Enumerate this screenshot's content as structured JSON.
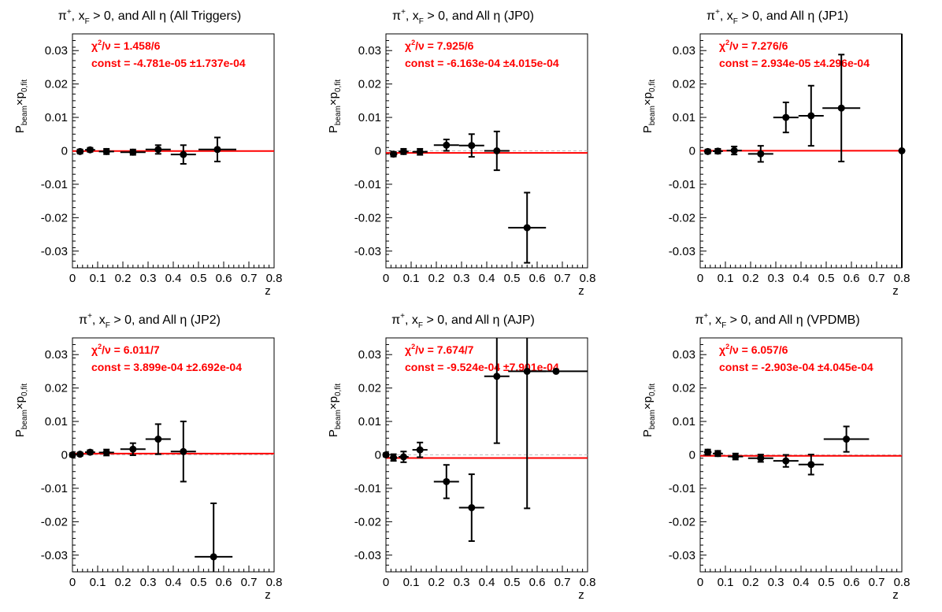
{
  "figure": {
    "colors": {
      "fit": "#ff0000",
      "stats": "#ff0000",
      "points": "#000000",
      "zero_line": "#bbbbbb"
    }
  },
  "chart_data": [
    {
      "type": "scatter",
      "title": "π⁺, x_F > 0, and All  η (All Triggers)",
      "title_parts": {
        "pre": "π",
        "sup": "+",
        "mid": ", x",
        "sub": "F",
        "post": " > 0, and All  η (All Triggers)"
      },
      "xlabel": "z",
      "ylabel": "P_beam×p_0,fit",
      "xlim": [
        0,
        0.8
      ],
      "ylim": [
        -0.035,
        0.035
      ],
      "xticks": [
        "0",
        "0.1",
        "0.2",
        "0.3",
        "0.4",
        "0.5",
        "0.6",
        "0.7",
        "0.8"
      ],
      "yticks": [
        "-0.03",
        "-0.02",
        "-0.01",
        "0",
        "0.01",
        "0.02",
        "0.03"
      ],
      "stats": {
        "chi2": "χ²/ν = 1.458/6",
        "chi2_label": "/ν = 1.458/6",
        "const": "const = -4.781e-05  ±1.737e-04"
      },
      "fit_const": -4.781e-05,
      "points": [
        {
          "x": 0.03,
          "y": -0.0002,
          "xerr": 0.015,
          "yerr": 0.0006
        },
        {
          "x": 0.07,
          "y": 0.0003,
          "xerr": 0.02,
          "yerr": 0.0006
        },
        {
          "x": 0.135,
          "y": -0.0002,
          "xerr": 0.03,
          "yerr": 0.0008
        },
        {
          "x": 0.24,
          "y": -0.0004,
          "xerr": 0.05,
          "yerr": 0.0008
        },
        {
          "x": 0.34,
          "y": 0.0004,
          "xerr": 0.05,
          "yerr": 0.0013
        },
        {
          "x": 0.44,
          "y": -0.0011,
          "xerr": 0.05,
          "yerr": 0.0028
        },
        {
          "x": 0.575,
          "y": 0.0004,
          "xerr": 0.075,
          "yerr": 0.0036
        }
      ]
    },
    {
      "type": "scatter",
      "title": "π⁺, x_F > 0, and All η (JP0)",
      "title_parts": {
        "pre": "π",
        "sup": "+",
        "mid": ", x",
        "sub": "F",
        "post": " > 0, and All η (JP0)"
      },
      "xlabel": "z",
      "ylabel": "P_beam×p_0,fit",
      "xlim": [
        0,
        0.8
      ],
      "ylim": [
        -0.035,
        0.035
      ],
      "xticks": [
        "0",
        "0.1",
        "0.2",
        "0.3",
        "0.4",
        "0.5",
        "0.6",
        "0.7",
        "0.8"
      ],
      "yticks": [
        "-0.03",
        "-0.02",
        "-0.01",
        "0",
        "0.01",
        "0.02",
        "0.03"
      ],
      "stats": {
        "chi2": "χ²/ν = 7.925/6",
        "chi2_label": "/ν = 7.925/6",
        "const": "const = -6.163e-04  ±4.015e-04"
      },
      "fit_const": -0.0006163,
      "points": [
        {
          "x": 0.03,
          "y": -0.001,
          "xerr": 0.015,
          "yerr": 0.0007
        },
        {
          "x": 0.07,
          "y": -0.0002,
          "xerr": 0.02,
          "yerr": 0.0008
        },
        {
          "x": 0.135,
          "y": -0.0003,
          "xerr": 0.03,
          "yerr": 0.0009
        },
        {
          "x": 0.24,
          "y": 0.0017,
          "xerr": 0.05,
          "yerr": 0.0017
        },
        {
          "x": 0.34,
          "y": 0.0016,
          "xerr": 0.05,
          "yerr": 0.0034
        },
        {
          "x": 0.44,
          "y": 0.0,
          "xerr": 0.05,
          "yerr": 0.0058
        },
        {
          "x": 0.56,
          "y": -0.023,
          "xerr": 0.075,
          "yerr": 0.0105
        }
      ]
    },
    {
      "type": "scatter",
      "title": "π⁺, x_F > 0, and All η (JP1)",
      "title_parts": {
        "pre": "π",
        "sup": "+",
        "mid": ", x",
        "sub": "F",
        "post": " > 0, and All η (JP1)"
      },
      "xlabel": "z",
      "ylabel": "P_beam×p_0,fit",
      "xlim": [
        0,
        0.8
      ],
      "ylim": [
        -0.035,
        0.035
      ],
      "xticks": [
        "0",
        "0.1",
        "0.2",
        "0.3",
        "0.4",
        "0.5",
        "0.6",
        "0.7",
        "0.8"
      ],
      "yticks": [
        "-0.03",
        "-0.02",
        "-0.01",
        "0",
        "0.01",
        "0.02",
        "0.03"
      ],
      "stats": {
        "chi2": "χ²/ν = 7.276/6",
        "chi2_label": "/ν = 7.276/6",
        "const": "const = 2.934e-05  ±4.296e-04"
      },
      "fit_const": 2.934e-05,
      "points": [
        {
          "x": 0.03,
          "y": -0.0002,
          "xerr": 0.015,
          "yerr": 0.0006
        },
        {
          "x": 0.07,
          "y": -0.0001,
          "xerr": 0.02,
          "yerr": 0.0007
        },
        {
          "x": 0.135,
          "y": 0.0001,
          "xerr": 0.03,
          "yerr": 0.0012
        },
        {
          "x": 0.24,
          "y": -0.0009,
          "xerr": 0.05,
          "yerr": 0.0024
        },
        {
          "x": 0.34,
          "y": 0.01,
          "xerr": 0.05,
          "yerr": 0.0045
        },
        {
          "x": 0.44,
          "y": 0.0105,
          "xerr": 0.05,
          "yerr": 0.009
        },
        {
          "x": 0.56,
          "y": 0.0128,
          "xerr": 0.075,
          "yerr": 0.016
        },
        {
          "x": 0.8,
          "y": 0.0,
          "xerr": 0.0,
          "yerr": 0.04
        }
      ]
    },
    {
      "type": "scatter",
      "title": "π⁺, x_F > 0, and All η (JP2)",
      "title_parts": {
        "pre": "π",
        "sup": "+",
        "mid": ", x",
        "sub": "F",
        "post": " > 0, and All η (JP2)"
      },
      "xlabel": "z",
      "ylabel": "P_beam×p_0,fit",
      "xlim": [
        0,
        0.8
      ],
      "ylim": [
        -0.035,
        0.035
      ],
      "xticks": [
        "0",
        "0.1",
        "0.2",
        "0.3",
        "0.4",
        "0.5",
        "0.6",
        "0.7",
        "0.8"
      ],
      "yticks": [
        "-0.03",
        "-0.02",
        "-0.01",
        "0",
        "0.01",
        "0.02",
        "0.03"
      ],
      "stats": {
        "chi2": "χ²/ν = 6.011/7",
        "chi2_label": "/ν = 6.011/7",
        "const": "const = 3.899e-04  ±2.692e-04"
      },
      "fit_const": 0.0003899,
      "points": [
        {
          "x": 0.0,
          "y": 0.0,
          "xerr": 0.008,
          "yerr": 0.0005
        },
        {
          "x": 0.03,
          "y": 0.0002,
          "xerr": 0.015,
          "yerr": 0.0005
        },
        {
          "x": 0.07,
          "y": 0.0008,
          "xerr": 0.02,
          "yerr": 0.0006
        },
        {
          "x": 0.135,
          "y": 0.0007,
          "xerr": 0.03,
          "yerr": 0.0009
        },
        {
          "x": 0.24,
          "y": 0.0017,
          "xerr": 0.05,
          "yerr": 0.0018
        },
        {
          "x": 0.34,
          "y": 0.0047,
          "xerr": 0.05,
          "yerr": 0.0045
        },
        {
          "x": 0.44,
          "y": 0.001,
          "xerr": 0.05,
          "yerr": 0.009
        },
        {
          "x": 0.56,
          "y": -0.0305,
          "xerr": 0.075,
          "yerr": 0.016
        }
      ]
    },
    {
      "type": "scatter",
      "title": "π⁺, x_F > 0, and All η (AJP)",
      "title_parts": {
        "pre": "π",
        "sup": "+",
        "mid": ", x",
        "sub": "F",
        "post": " > 0, and All η (AJP)"
      },
      "xlabel": "z",
      "ylabel": "P_beam×p_0,fit",
      "xlim": [
        0,
        0.8
      ],
      "ylim": [
        -0.035,
        0.035
      ],
      "xticks": [
        "0",
        "0.1",
        "0.2",
        "0.3",
        "0.4",
        "0.5",
        "0.6",
        "0.7",
        "0.8"
      ],
      "yticks": [
        "-0.03",
        "-0.02",
        "-0.01",
        "0",
        "0.01",
        "0.02",
        "0.03"
      ],
      "stats": {
        "chi2": "χ²/ν = 7.674/7",
        "chi2_label": "/ν = 7.674/7",
        "const": "const = -9.524e-04  ±7.901e-04"
      },
      "fit_const": -0.0009524,
      "points": [
        {
          "x": 0.0,
          "y": 0.0,
          "xerr": 0.008,
          "yerr": 0.0005
        },
        {
          "x": 0.03,
          "y": -0.0008,
          "xerr": 0.015,
          "yerr": 0.001
        },
        {
          "x": 0.07,
          "y": -0.0006,
          "xerr": 0.02,
          "yerr": 0.0016
        },
        {
          "x": 0.135,
          "y": 0.0015,
          "xerr": 0.03,
          "yerr": 0.0022
        },
        {
          "x": 0.24,
          "y": -0.008,
          "xerr": 0.05,
          "yerr": 0.005
        },
        {
          "x": 0.34,
          "y": -0.0158,
          "xerr": 0.05,
          "yerr": 0.01
        },
        {
          "x": 0.44,
          "y": 0.0235,
          "xerr": 0.05,
          "yerr": 0.02
        },
        {
          "x": 0.56,
          "y": 0.025,
          "xerr": 0.075,
          "yerr": 0.041
        },
        {
          "x": 0.675,
          "y": 0.025,
          "xerr": 0.125,
          "yerr": 0.0
        }
      ]
    },
    {
      "type": "scatter",
      "title": "π⁺, x_F > 0, and All  η (VPDMB)",
      "title_parts": {
        "pre": "π",
        "sup": "+",
        "mid": ", x",
        "sub": "F",
        "post": " > 0, and All  η (VPDMB)"
      },
      "xlabel": "z",
      "ylabel": "P_beam×p_0,fit",
      "xlim": [
        0,
        0.8
      ],
      "ylim": [
        -0.035,
        0.035
      ],
      "xticks": [
        "0",
        "0.1",
        "0.2",
        "0.3",
        "0.4",
        "0.5",
        "0.6",
        "0.7",
        "0.8"
      ],
      "yticks": [
        "-0.03",
        "-0.02",
        "-0.01",
        "0",
        "0.01",
        "0.02",
        "0.03"
      ],
      "stats": {
        "chi2": "χ²/ν = 6.057/6",
        "chi2_label": "/ν = 6.057/6",
        "const": "const = -2.903e-04  ±4.045e-04"
      },
      "fit_const": -0.0002903,
      "points": [
        {
          "x": 0.03,
          "y": 0.0008,
          "xerr": 0.015,
          "yerr": 0.0008
        },
        {
          "x": 0.07,
          "y": 0.0004,
          "xerr": 0.02,
          "yerr": 0.0008
        },
        {
          "x": 0.14,
          "y": -0.0005,
          "xerr": 0.03,
          "yerr": 0.0009
        },
        {
          "x": 0.24,
          "y": -0.001,
          "xerr": 0.05,
          "yerr": 0.0011
        },
        {
          "x": 0.34,
          "y": -0.0018,
          "xerr": 0.05,
          "yerr": 0.0018
        },
        {
          "x": 0.44,
          "y": -0.0029,
          "xerr": 0.05,
          "yerr": 0.003
        },
        {
          "x": 0.58,
          "y": 0.0047,
          "xerr": 0.09,
          "yerr": 0.0038
        }
      ]
    }
  ]
}
